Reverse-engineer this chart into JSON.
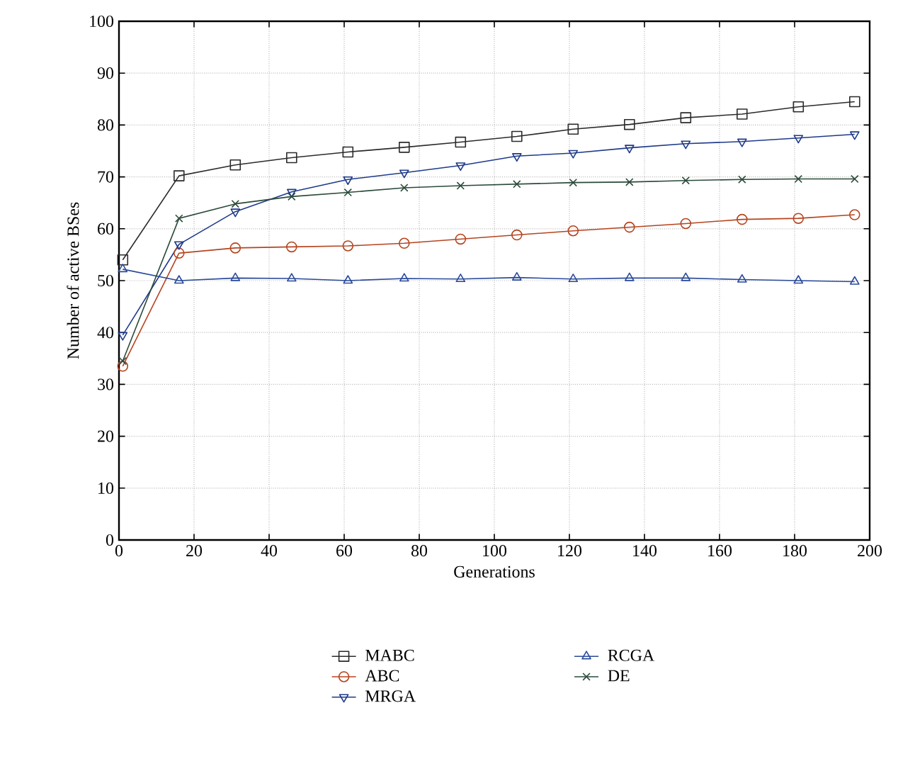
{
  "chart_data": {
    "type": "line",
    "xlabel": "Generations",
    "ylabel": "Number of active BSes",
    "x": [
      1,
      16,
      31,
      46,
      61,
      76,
      91,
      106,
      121,
      136,
      151,
      166,
      181,
      196
    ],
    "series": [
      {
        "name": "MABC",
        "color": "#2b2b2b",
        "marker": "square",
        "values": [
          54,
          70.2,
          72.3,
          73.7,
          74.8,
          75.7,
          76.7,
          77.8,
          79.2,
          80.1,
          81.4,
          82.1,
          83.5,
          84.5
        ]
      },
      {
        "name": "ABC",
        "color": "#b5441f",
        "marker": "circle",
        "values": [
          33.5,
          55.3,
          56.3,
          56.5,
          56.7,
          57.2,
          58,
          58.8,
          59.6,
          60.3,
          61,
          61.8,
          62,
          62.7
        ]
      },
      {
        "name": "MRGA",
        "color": "#1f3a8a",
        "marker": "triangle-down",
        "values": [
          39.5,
          57,
          63.3,
          67.1,
          69.5,
          70.8,
          72.2,
          74,
          74.6,
          75.6,
          76.4,
          76.8,
          77.5,
          78.2
        ]
      },
      {
        "name": "RCGA",
        "color": "#2a4a9a",
        "marker": "triangle",
        "values": [
          52.2,
          50,
          50.5,
          50.4,
          50,
          50.4,
          50.3,
          50.6,
          50.3,
          50.5,
          50.5,
          50.2,
          50,
          49.8
        ]
      },
      {
        "name": "DE",
        "color": "#2b4a3a",
        "marker": "cross",
        "values": [
          34.5,
          62,
          64.8,
          66.2,
          67,
          67.9,
          68.3,
          68.6,
          68.9,
          69,
          69.3,
          69.5,
          69.6,
          69.6
        ]
      }
    ],
    "xlim": [
      0,
      200
    ],
    "xticks": [
      0,
      20,
      40,
      60,
      80,
      100,
      120,
      140,
      160,
      180,
      200
    ],
    "ylim": [
      0,
      100
    ],
    "yticks": [
      0,
      10,
      20,
      30,
      40,
      50,
      60,
      70,
      80,
      90,
      100
    ],
    "grid": true,
    "legend": "bottom",
    "line_style": "solid"
  }
}
